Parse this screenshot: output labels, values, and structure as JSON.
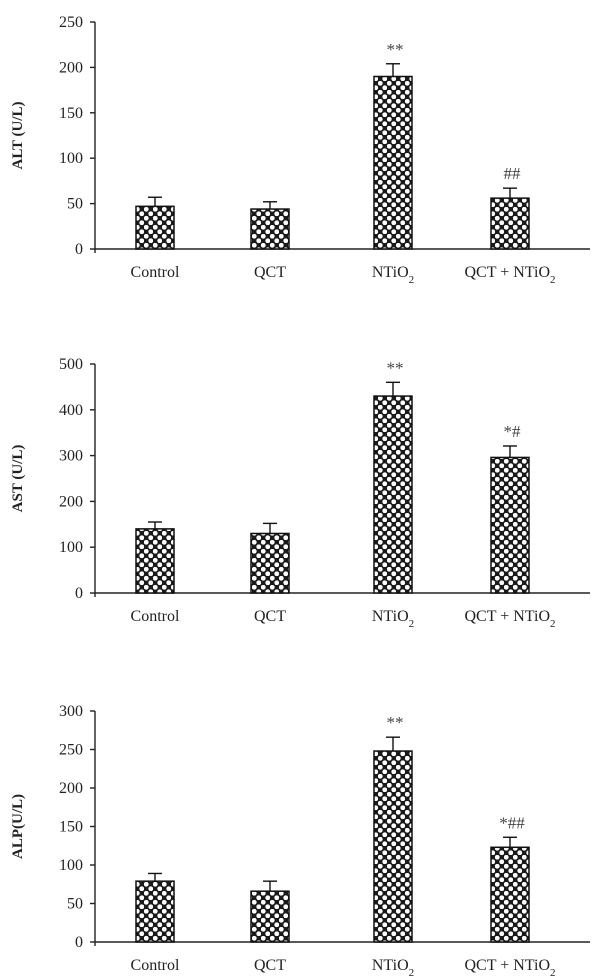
{
  "chart_data": [
    {
      "type": "bar",
      "ylabel": "ALT (U/L)",
      "ylim": [
        0,
        250
      ],
      "yticks": [
        0,
        50,
        100,
        150,
        200,
        250
      ],
      "categories": [
        "Control",
        "QCT",
        "NTiO2",
        "QCT + NTiO2"
      ],
      "values": [
        47,
        44,
        190,
        56
      ],
      "errors": [
        10,
        8,
        14,
        11
      ],
      "annotations": [
        "",
        "",
        "**",
        "##"
      ]
    },
    {
      "type": "bar",
      "ylabel": "AST (U/L)",
      "ylim": [
        0,
        500
      ],
      "yticks": [
        0,
        100,
        200,
        300,
        400,
        500
      ],
      "categories": [
        "Control",
        "QCT",
        "NTiO2",
        "QCT + NTiO2"
      ],
      "values": [
        140,
        130,
        430,
        296
      ],
      "errors": [
        15,
        22,
        30,
        25
      ],
      "annotations": [
        "",
        "",
        "**",
        "*#"
      ]
    },
    {
      "type": "bar",
      "ylabel": "ALP(U/L)",
      "ylim": [
        0,
        300
      ],
      "yticks": [
        0,
        50,
        100,
        150,
        200,
        250,
        300
      ],
      "categories": [
        "Control",
        "QCT",
        "NTiO2",
        "QCT + NTiO2"
      ],
      "values": [
        79,
        66,
        248,
        123
      ],
      "errors": [
        10,
        13,
        18,
        13
      ],
      "annotations": [
        "",
        "",
        "**",
        "*##"
      ]
    }
  ],
  "style": {
    "bar_fill": "#ffffff",
    "bar_pattern_dot": "#1a1a1a",
    "axis_color": "#222222"
  }
}
